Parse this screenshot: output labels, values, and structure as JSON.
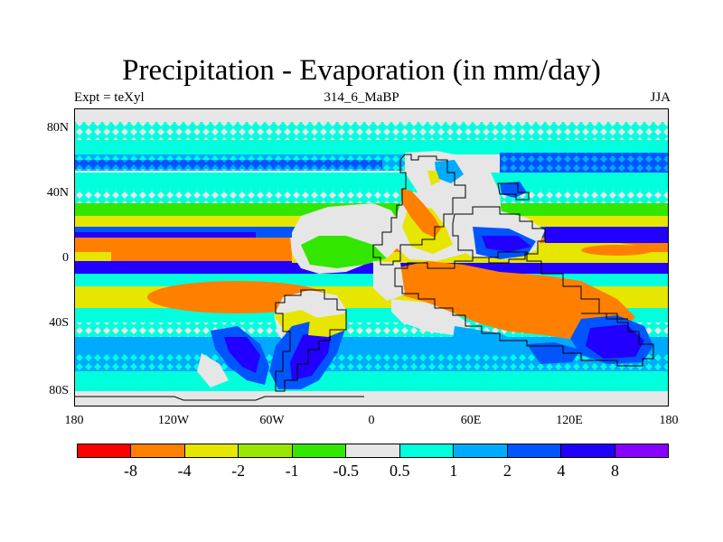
{
  "title": "Precipitation - Evaporation (in mm/day)",
  "subtitle_left": "Expt = teXyl",
  "subtitle_center": "314_6_MaBP",
  "subtitle_right": "JJA",
  "lat_labels": [
    "80N",
    "40N",
    "0",
    "40S",
    "80S"
  ],
  "lon_labels": [
    "180",
    "120W",
    "60W",
    "0",
    "60E",
    "120E",
    "180"
  ],
  "colorbar": {
    "colors": [
      "#ff0000",
      "#ff8000",
      "#e6e600",
      "#99e600",
      "#33e600",
      "#e6e6e6",
      "#00ffdd",
      "#00aaff",
      "#0055ff",
      "#2200ff",
      "#8800ff"
    ],
    "labels": [
      "-8",
      "-4",
      "-2",
      "-1",
      "-0.5",
      "0.5",
      "1",
      "2",
      "4",
      "8"
    ]
  },
  "background_color": "#e6e6e6"
}
